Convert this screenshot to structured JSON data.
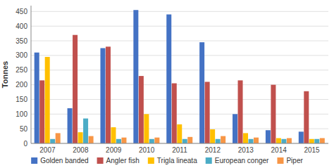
{
  "chart_data": {
    "type": "bar",
    "categories": [
      "2007",
      "2008",
      "2009",
      "2010",
      "2011",
      "2012",
      "2013",
      "2014",
      "2015"
    ],
    "series": [
      {
        "name": "Golden banded",
        "color": "#4472C4",
        "values": [
          310,
          120,
          325,
          455,
          440,
          345,
          100,
          45,
          40
        ]
      },
      {
        "name": "Angler fish",
        "color": "#C0504D",
        "values": [
          215,
          370,
          330,
          230,
          205,
          210,
          215,
          200,
          178
        ]
      },
      {
        "name": "Trigla lineata",
        "color": "#FFC000",
        "values": [
          295,
          38,
          55,
          100,
          65,
          48,
          35,
          18,
          15
        ]
      },
      {
        "name": "European conger",
        "color": "#4BACC6",
        "values": [
          15,
          85,
          15,
          15,
          15,
          15,
          15,
          15,
          15
        ]
      },
      {
        "name": "Piper",
        "color": "#F79646",
        "values": [
          35,
          25,
          20,
          20,
          22,
          25,
          20,
          18,
          18
        ]
      }
    ],
    "ylabel": "Tonnes",
    "ylim": [
      0,
      470
    ],
    "yticks": [
      0,
      50,
      100,
      150,
      200,
      250,
      300,
      350,
      400,
      450
    ],
    "grid": true,
    "legend": "bottom"
  }
}
